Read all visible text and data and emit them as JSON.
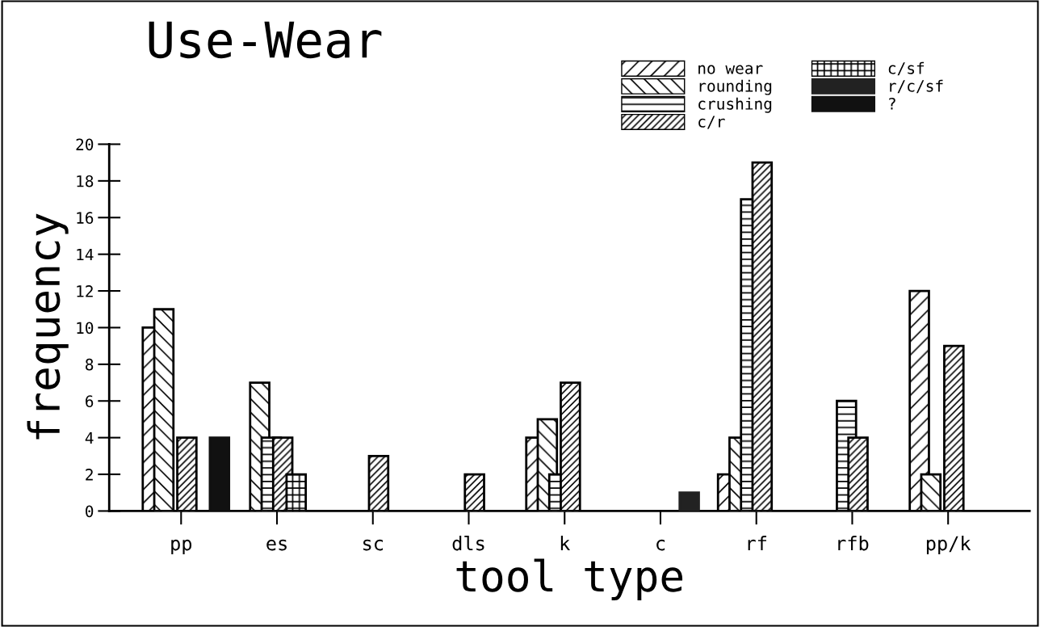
{
  "chart_data": {
    "type": "bar",
    "title": "Use-Wear",
    "xlabel": "tool type",
    "ylabel": "frequency",
    "categories": [
      "pp",
      "es",
      "sc",
      "dls",
      "k",
      "c",
      "rf",
      "rfb",
      "pp/k"
    ],
    "series": [
      {
        "name": "no wear",
        "color": "#000000",
        "values": [
          10,
          null,
          null,
          null,
          4,
          null,
          2,
          null,
          12
        ]
      },
      {
        "name": "rounding",
        "color": "#000000",
        "values": [
          11,
          7,
          null,
          null,
          5,
          null,
          4,
          null,
          2
        ]
      },
      {
        "name": "crushing",
        "color": "#000000",
        "values": [
          null,
          4,
          null,
          null,
          2,
          null,
          17,
          6,
          null
        ]
      },
      {
        "name": "c/r",
        "color": "#000000",
        "values": [
          4,
          4,
          3,
          2,
          7,
          null,
          19,
          4,
          9
        ]
      },
      {
        "name": "c/sf",
        "color": "#000000",
        "values": [
          null,
          2,
          null,
          null,
          null,
          null,
          null,
          null,
          null
        ]
      },
      {
        "name": "r/c/sf",
        "color": "#222222",
        "values": [
          null,
          null,
          null,
          null,
          null,
          1,
          null,
          null,
          null
        ]
      },
      {
        "name": "?",
        "color": "#111111",
        "values": [
          4,
          null,
          null,
          null,
          null,
          null,
          null,
          null,
          null
        ]
      }
    ],
    "ylim": [
      0,
      20
    ],
    "yticks": [
      0,
      2,
      4,
      6,
      8,
      10,
      12,
      14,
      16,
      18,
      20
    ],
    "grid": false,
    "legend": "top right"
  }
}
